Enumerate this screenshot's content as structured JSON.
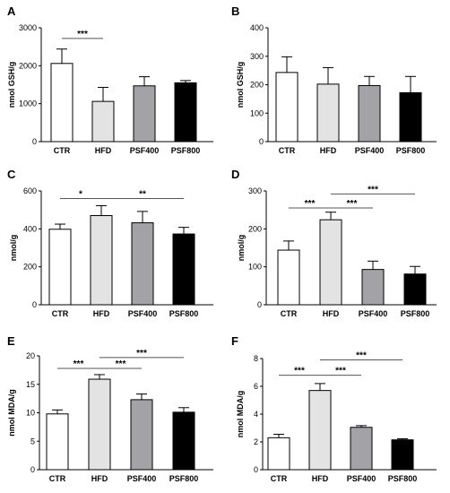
{
  "colors": {
    "CTR": "#ffffff",
    "HFD": "#e3e3e3",
    "PSF400": "#a3a3a7",
    "PSF800": "#000000",
    "axis": "#000000",
    "sig_line": "#555555"
  },
  "chart_data": [
    {
      "panel": "A",
      "type": "bar",
      "categories": [
        "CTR",
        "HFD",
        "PSF400",
        "PSF800"
      ],
      "values": [
        2060,
        1060,
        1470,
        1550
      ],
      "errors": [
        380,
        370,
        240,
        60
      ],
      "ylabel": "nmol GSH/g",
      "ylim": [
        0,
        3000
      ],
      "yticks": [
        "0",
        "1000",
        "2000",
        "3000"
      ],
      "significance": [
        {
          "from": "CTR",
          "to": "HFD",
          "label": "***",
          "y": 2720
        }
      ]
    },
    {
      "panel": "B",
      "type": "bar",
      "categories": [
        "CTR",
        "HFD",
        "PSF400",
        "PSF800"
      ],
      "values": [
        243,
        202,
        197,
        172
      ],
      "errors": [
        55,
        58,
        32,
        57
      ],
      "ylabel": "nmol GSH/g",
      "ylim": [
        0,
        400
      ],
      "yticks": [
        "0",
        "100",
        "200",
        "300",
        "400"
      ],
      "significance": []
    },
    {
      "panel": "C",
      "type": "bar",
      "categories": [
        "CTR",
        "HFD",
        "PSF400",
        "PSF800"
      ],
      "values": [
        398,
        470,
        432,
        373
      ],
      "errors": [
        27,
        52,
        60,
        35
      ],
      "ylabel": "nmol/g",
      "ylim": [
        0,
        600
      ],
      "yticks": [
        "0",
        "200",
        "400",
        "600"
      ],
      "significance": [
        {
          "from": "CTR",
          "to": "HFD",
          "label": "*",
          "y": 560
        },
        {
          "from": "HFD",
          "to": "PSF800",
          "label": "**",
          "y": 560
        }
      ]
    },
    {
      "panel": "D",
      "type": "bar",
      "categories": [
        "CTR",
        "HFD",
        "PSF400",
        "PSF800"
      ],
      "values": [
        144,
        224,
        93,
        81
      ],
      "errors": [
        24,
        20,
        22,
        20
      ],
      "ylabel": "nmol/g",
      "ylim": [
        0,
        300
      ],
      "yticks": [
        "0",
        "100",
        "200",
        "300"
      ],
      "significance": [
        {
          "from": "CTR",
          "to": "HFD",
          "label": "***",
          "y": 255
        },
        {
          "from": "HFD",
          "to": "PSF400",
          "label": "***",
          "y": 255
        },
        {
          "from": "HFD",
          "to": "PSF800",
          "label": "***",
          "y": 292
        }
      ]
    },
    {
      "panel": "E",
      "type": "bar",
      "categories": [
        "CTR",
        "HFD",
        "PSF400",
        "PSF800"
      ],
      "values": [
        9.8,
        15.9,
        12.3,
        10.1
      ],
      "errors": [
        0.7,
        0.8,
        1.0,
        0.8
      ],
      "ylabel": "nmol MDA/g",
      "ylim": [
        0,
        20
      ],
      "yticks": [
        "0",
        "5",
        "10",
        "15",
        "20"
      ],
      "significance": [
        {
          "from": "CTR",
          "to": "HFD",
          "label": "***",
          "y": 17.8
        },
        {
          "from": "HFD",
          "to": "PSF400",
          "label": "***",
          "y": 17.8
        },
        {
          "from": "HFD",
          "to": "PSF800",
          "label": "***",
          "y": 19.7
        }
      ]
    },
    {
      "panel": "F",
      "type": "bar",
      "categories": [
        "CTR",
        "HFD",
        "PSF400",
        "PSF800"
      ],
      "values": [
        2.3,
        5.7,
        3.05,
        2.15
      ],
      "errors": [
        0.25,
        0.5,
        0.12,
        0.08
      ],
      "ylabel": "nmol MDA/g",
      "ylim": [
        0,
        8
      ],
      "yticks": [
        "0",
        "2",
        "4",
        "6",
        "8"
      ],
      "significance": [
        {
          "from": "CTR",
          "to": "HFD",
          "label": "***",
          "y": 6.8
        },
        {
          "from": "HFD",
          "to": "PSF400",
          "label": "***",
          "y": 6.8
        },
        {
          "from": "HFD",
          "to": "PSF800",
          "label": "***",
          "y": 7.9
        }
      ]
    }
  ]
}
